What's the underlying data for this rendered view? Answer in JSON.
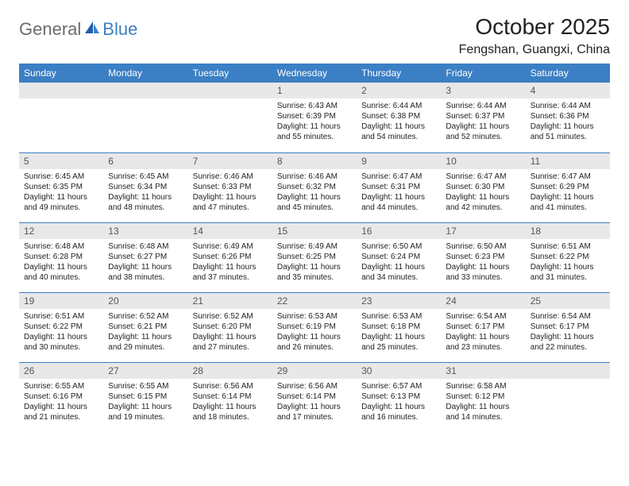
{
  "logo": {
    "general": "General",
    "blue": "Blue"
  },
  "title": "October 2025",
  "location": "Fengshan, Guangxi, China",
  "colors": {
    "header_bg": "#3b7fc4",
    "header_text": "#ffffff",
    "daynum_bg": "#e8e8e8",
    "border": "#3b7fc4",
    "logo_gray": "#6b6b6b",
    "logo_blue": "#3b7fc4"
  },
  "weekdays": [
    "Sunday",
    "Monday",
    "Tuesday",
    "Wednesday",
    "Thursday",
    "Friday",
    "Saturday"
  ],
  "weeks": [
    [
      {
        "day": "",
        "lines": []
      },
      {
        "day": "",
        "lines": []
      },
      {
        "day": "",
        "lines": []
      },
      {
        "day": "1",
        "lines": [
          "Sunrise: 6:43 AM",
          "Sunset: 6:39 PM",
          "Daylight: 11 hours and 55 minutes."
        ]
      },
      {
        "day": "2",
        "lines": [
          "Sunrise: 6:44 AM",
          "Sunset: 6:38 PM",
          "Daylight: 11 hours and 54 minutes."
        ]
      },
      {
        "day": "3",
        "lines": [
          "Sunrise: 6:44 AM",
          "Sunset: 6:37 PM",
          "Daylight: 11 hours and 52 minutes."
        ]
      },
      {
        "day": "4",
        "lines": [
          "Sunrise: 6:44 AM",
          "Sunset: 6:36 PM",
          "Daylight: 11 hours and 51 minutes."
        ]
      }
    ],
    [
      {
        "day": "5",
        "lines": [
          "Sunrise: 6:45 AM",
          "Sunset: 6:35 PM",
          "Daylight: 11 hours and 49 minutes."
        ]
      },
      {
        "day": "6",
        "lines": [
          "Sunrise: 6:45 AM",
          "Sunset: 6:34 PM",
          "Daylight: 11 hours and 48 minutes."
        ]
      },
      {
        "day": "7",
        "lines": [
          "Sunrise: 6:46 AM",
          "Sunset: 6:33 PM",
          "Daylight: 11 hours and 47 minutes."
        ]
      },
      {
        "day": "8",
        "lines": [
          "Sunrise: 6:46 AM",
          "Sunset: 6:32 PM",
          "Daylight: 11 hours and 45 minutes."
        ]
      },
      {
        "day": "9",
        "lines": [
          "Sunrise: 6:47 AM",
          "Sunset: 6:31 PM",
          "Daylight: 11 hours and 44 minutes."
        ]
      },
      {
        "day": "10",
        "lines": [
          "Sunrise: 6:47 AM",
          "Sunset: 6:30 PM",
          "Daylight: 11 hours and 42 minutes."
        ]
      },
      {
        "day": "11",
        "lines": [
          "Sunrise: 6:47 AM",
          "Sunset: 6:29 PM",
          "Daylight: 11 hours and 41 minutes."
        ]
      }
    ],
    [
      {
        "day": "12",
        "lines": [
          "Sunrise: 6:48 AM",
          "Sunset: 6:28 PM",
          "Daylight: 11 hours and 40 minutes."
        ]
      },
      {
        "day": "13",
        "lines": [
          "Sunrise: 6:48 AM",
          "Sunset: 6:27 PM",
          "Daylight: 11 hours and 38 minutes."
        ]
      },
      {
        "day": "14",
        "lines": [
          "Sunrise: 6:49 AM",
          "Sunset: 6:26 PM",
          "Daylight: 11 hours and 37 minutes."
        ]
      },
      {
        "day": "15",
        "lines": [
          "Sunrise: 6:49 AM",
          "Sunset: 6:25 PM",
          "Daylight: 11 hours and 35 minutes."
        ]
      },
      {
        "day": "16",
        "lines": [
          "Sunrise: 6:50 AM",
          "Sunset: 6:24 PM",
          "Daylight: 11 hours and 34 minutes."
        ]
      },
      {
        "day": "17",
        "lines": [
          "Sunrise: 6:50 AM",
          "Sunset: 6:23 PM",
          "Daylight: 11 hours and 33 minutes."
        ]
      },
      {
        "day": "18",
        "lines": [
          "Sunrise: 6:51 AM",
          "Sunset: 6:22 PM",
          "Daylight: 11 hours and 31 minutes."
        ]
      }
    ],
    [
      {
        "day": "19",
        "lines": [
          "Sunrise: 6:51 AM",
          "Sunset: 6:22 PM",
          "Daylight: 11 hours and 30 minutes."
        ]
      },
      {
        "day": "20",
        "lines": [
          "Sunrise: 6:52 AM",
          "Sunset: 6:21 PM",
          "Daylight: 11 hours and 29 minutes."
        ]
      },
      {
        "day": "21",
        "lines": [
          "Sunrise: 6:52 AM",
          "Sunset: 6:20 PM",
          "Daylight: 11 hours and 27 minutes."
        ]
      },
      {
        "day": "22",
        "lines": [
          "Sunrise: 6:53 AM",
          "Sunset: 6:19 PM",
          "Daylight: 11 hours and 26 minutes."
        ]
      },
      {
        "day": "23",
        "lines": [
          "Sunrise: 6:53 AM",
          "Sunset: 6:18 PM",
          "Daylight: 11 hours and 25 minutes."
        ]
      },
      {
        "day": "24",
        "lines": [
          "Sunrise: 6:54 AM",
          "Sunset: 6:17 PM",
          "Daylight: 11 hours and 23 minutes."
        ]
      },
      {
        "day": "25",
        "lines": [
          "Sunrise: 6:54 AM",
          "Sunset: 6:17 PM",
          "Daylight: 11 hours and 22 minutes."
        ]
      }
    ],
    [
      {
        "day": "26",
        "lines": [
          "Sunrise: 6:55 AM",
          "Sunset: 6:16 PM",
          "Daylight: 11 hours and 21 minutes."
        ]
      },
      {
        "day": "27",
        "lines": [
          "Sunrise: 6:55 AM",
          "Sunset: 6:15 PM",
          "Daylight: 11 hours and 19 minutes."
        ]
      },
      {
        "day": "28",
        "lines": [
          "Sunrise: 6:56 AM",
          "Sunset: 6:14 PM",
          "Daylight: 11 hours and 18 minutes."
        ]
      },
      {
        "day": "29",
        "lines": [
          "Sunrise: 6:56 AM",
          "Sunset: 6:14 PM",
          "Daylight: 11 hours and 17 minutes."
        ]
      },
      {
        "day": "30",
        "lines": [
          "Sunrise: 6:57 AM",
          "Sunset: 6:13 PM",
          "Daylight: 11 hours and 16 minutes."
        ]
      },
      {
        "day": "31",
        "lines": [
          "Sunrise: 6:58 AM",
          "Sunset: 6:12 PM",
          "Daylight: 11 hours and 14 minutes."
        ]
      },
      {
        "day": "",
        "lines": []
      }
    ]
  ]
}
